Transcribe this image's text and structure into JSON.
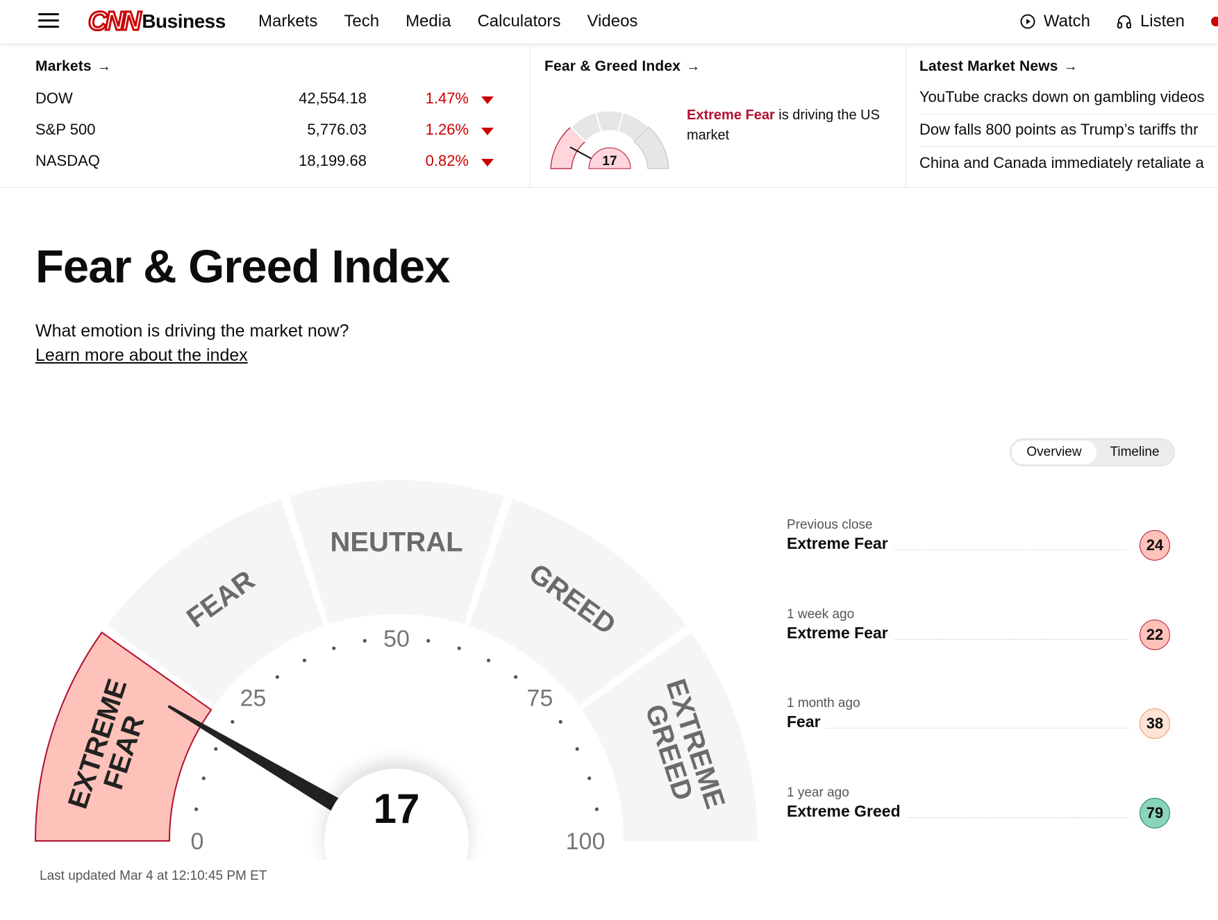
{
  "header": {
    "logo_cnn": "CNN",
    "logo_business": "Business",
    "nav": [
      "Markets",
      "Tech",
      "Media",
      "Calculators",
      "Videos"
    ],
    "watch": "Watch",
    "listen": "Listen"
  },
  "strip": {
    "markets_title": "Markets",
    "markets": [
      {
        "name": "DOW",
        "value": "42,554.18",
        "change": "1.47%"
      },
      {
        "name": "S&P 500",
        "value": "5,776.03",
        "change": "1.26%"
      },
      {
        "name": "NASDAQ",
        "value": "18,199.68",
        "change": "0.82%"
      }
    ],
    "fg_title": "Fear & Greed Index",
    "fg_mini_value": "17",
    "fg_mini_status": "Extreme Fear",
    "fg_mini_rest": " is driving the US market",
    "news_title": "Latest Market News",
    "news": [
      "YouTube cracks down on gambling videos",
      "Dow falls 800 points as Trump’s tariffs thr",
      "China and Canada immediately retaliate a"
    ]
  },
  "main": {
    "title": "Fear & Greed Index",
    "subtitle": "What emotion is driving the market now?",
    "learn_more": "Learn more about the index",
    "toggle": {
      "overview": "Overview",
      "timeline": "Timeline"
    },
    "updated": "Last updated Mar 4 at 12:10:45 PM ET"
  },
  "gauge": {
    "value": 17,
    "value_label": "17",
    "segments": [
      "EXTREME FEAR",
      "FEAR",
      "NEUTRAL",
      "GREED",
      "EXTREME GREED"
    ],
    "ticks": [
      "0",
      "25",
      "50",
      "75",
      "100"
    ],
    "active_color": "#ffc2ba",
    "active_border": "#b0102f",
    "inactive_color": "#f5f5f5"
  },
  "history": [
    {
      "label": "Previous close",
      "status": "Extreme Fear",
      "value": "24",
      "bg": "#ffc2ba",
      "border": "#b0102f"
    },
    {
      "label": "1 week ago",
      "status": "Extreme Fear",
      "value": "22",
      "bg": "#ffc2ba",
      "border": "#b0102f"
    },
    {
      "label": "1 month ago",
      "status": "Fear",
      "value": "38",
      "bg": "#ffe3d5",
      "border": "#e8956b"
    },
    {
      "label": "1 year ago",
      "status": "Extreme Greed",
      "value": "79",
      "bg": "#8ad4bd",
      "border": "#1b7a5a"
    }
  ],
  "colors": {
    "accent_red": "#cc0000",
    "fear_text": "#b0102f"
  }
}
